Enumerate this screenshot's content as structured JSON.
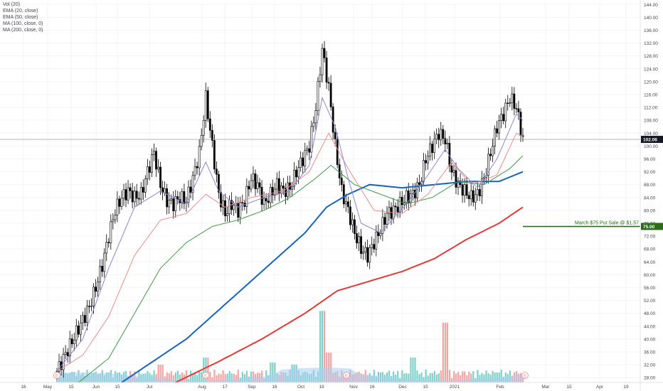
{
  "legend": [
    "Vol (20)",
    "EMA (20, close)",
    "EMA (50, close)",
    "MA (100, close, 0)",
    "MA (200, close, 0)"
  ],
  "colors": {
    "up": "#000000",
    "down": "#000000",
    "ema20": "#8c86d6",
    "ema50": "#f08a8a",
    "ma100": "#3d9a45",
    "ma200_blue": "#1565c0",
    "ma200_red": "#e53935",
    "vol_up": "#7fd0c8",
    "vol_down": "#f5a3a3",
    "vol_ma": "#a9cdf0",
    "price_line": "#888888",
    "annotation": "#2e6b1f"
  },
  "chart_data": {
    "type": "candlestick",
    "y_axis": {
      "ticks": [
        "28.00",
        "32.00",
        "36.00",
        "40.00",
        "44.00",
        "48.00",
        "52.00",
        "56.00",
        "60.00",
        "64.00",
        "68.00",
        "72.00",
        "76.00",
        "80.00",
        "84.00",
        "88.00",
        "92.00",
        "96.00",
        "100.00",
        "104.00",
        "108.00",
        "112.00",
        "116.00",
        "120.00",
        "124.00",
        "128.00",
        "132.00",
        "136.00",
        "140.00",
        "144.00"
      ],
      "range": [
        26.5,
        144.5
      ]
    },
    "x_axis": {
      "ticks": [
        "16",
        "May",
        "15",
        "Jun",
        "15",
        "Jul",
        "Aug",
        "17",
        "Sep",
        "16",
        "Oct",
        "19",
        "Nov",
        "16",
        "Dec",
        "15",
        "2021",
        "Feb",
        "Mar",
        "15",
        "Apr",
        "19"
      ]
    },
    "last_price": "102.06",
    "annotation": {
      "text": "March $75 Put Sale @ $1.57",
      "price_label": "75.00",
      "value": 75.0
    },
    "earnings_markers": [
      "E",
      "E",
      "E",
      "E",
      "E",
      "E"
    ],
    "price_path": [
      [
        0,
        30
      ],
      [
        3,
        34
      ],
      [
        6,
        38
      ],
      [
        9,
        42
      ],
      [
        12,
        46
      ],
      [
        15,
        50
      ],
      [
        18,
        56
      ],
      [
        21,
        63
      ],
      [
        24,
        72
      ],
      [
        27,
        80
      ],
      [
        30,
        84
      ],
      [
        33,
        86
      ],
      [
        36,
        84
      ],
      [
        39,
        85
      ],
      [
        42,
        92
      ],
      [
        45,
        98
      ],
      [
        48,
        88
      ],
      [
        51,
        83
      ],
      [
        54,
        82
      ],
      [
        57,
        84
      ],
      [
        60,
        83
      ],
      [
        63,
        90
      ],
      [
        66,
        98
      ],
      [
        69,
        115
      ],
      [
        72,
        100
      ],
      [
        75,
        85
      ],
      [
        78,
        79
      ],
      [
        81,
        82
      ],
      [
        84,
        80
      ],
      [
        87,
        83
      ],
      [
        90,
        90
      ],
      [
        93,
        88
      ],
      [
        96,
        82
      ],
      [
        99,
        85
      ],
      [
        102,
        88
      ],
      [
        105,
        86
      ],
      [
        108,
        87
      ],
      [
        111,
        92
      ],
      [
        114,
        96
      ],
      [
        117,
        100
      ],
      [
        120,
        112
      ],
      [
        123,
        130
      ],
      [
        126,
        118
      ],
      [
        129,
        100
      ],
      [
        132,
        86
      ],
      [
        135,
        80
      ],
      [
        138,
        73
      ],
      [
        141,
        68
      ],
      [
        144,
        66
      ],
      [
        147,
        70
      ],
      [
        150,
        74
      ],
      [
        153,
        79
      ],
      [
        156,
        80
      ],
      [
        159,
        82
      ],
      [
        162,
        84
      ],
      [
        165,
        85
      ],
      [
        168,
        88
      ],
      [
        171,
        96
      ],
      [
        174,
        100
      ],
      [
        177,
        104
      ],
      [
        180,
        102
      ],
      [
        183,
        92
      ],
      [
        186,
        88
      ],
      [
        189,
        86
      ],
      [
        192,
        84
      ],
      [
        195,
        85
      ],
      [
        198,
        90
      ],
      [
        201,
        98
      ],
      [
        204,
        106
      ],
      [
        207,
        110
      ],
      [
        210,
        115
      ],
      [
        213,
        112
      ],
      [
        216,
        102
      ]
    ],
    "ema20": [
      [
        0,
        30
      ],
      [
        12,
        40
      ],
      [
        24,
        62
      ],
      [
        36,
        81
      ],
      [
        48,
        86
      ],
      [
        60,
        82
      ],
      [
        69,
        95
      ],
      [
        75,
        86
      ],
      [
        84,
        81
      ],
      [
        96,
        84
      ],
      [
        108,
        86
      ],
      [
        117,
        94
      ],
      [
        123,
        115
      ],
      [
        129,
        106
      ],
      [
        135,
        90
      ],
      [
        141,
        76
      ],
      [
        150,
        73
      ],
      [
        162,
        82
      ],
      [
        171,
        90
      ],
      [
        180,
        99
      ],
      [
        186,
        93
      ],
      [
        195,
        87
      ],
      [
        204,
        96
      ],
      [
        213,
        110
      ],
      [
        216,
        108
      ]
    ],
    "ema50": [
      [
        0,
        30
      ],
      [
        12,
        35
      ],
      [
        24,
        47
      ],
      [
        36,
        66
      ],
      [
        48,
        77
      ],
      [
        60,
        79
      ],
      [
        69,
        85
      ],
      [
        78,
        81
      ],
      [
        90,
        84
      ],
      [
        105,
        86
      ],
      [
        117,
        92
      ],
      [
        126,
        104
      ],
      [
        135,
        93
      ],
      [
        147,
        80
      ],
      [
        160,
        79
      ],
      [
        172,
        85
      ],
      [
        183,
        95
      ],
      [
        192,
        88
      ],
      [
        204,
        91
      ],
      [
        213,
        104
      ],
      [
        216,
        103
      ]
    ],
    "ma100": [
      [
        10,
        26.5
      ],
      [
        24,
        34
      ],
      [
        36,
        48
      ],
      [
        48,
        62
      ],
      [
        60,
        70
      ],
      [
        72,
        75
      ],
      [
        84,
        77
      ],
      [
        96,
        80
      ],
      [
        108,
        84
      ],
      [
        120,
        90
      ],
      [
        127,
        94
      ],
      [
        138,
        88
      ],
      [
        150,
        85
      ],
      [
        162,
        82
      ],
      [
        174,
        84
      ],
      [
        186,
        89
      ],
      [
        198,
        88
      ],
      [
        210,
        93
      ],
      [
        216,
        97
      ]
    ],
    "ma200_blue": [
      [
        30,
        26.5
      ],
      [
        60,
        40
      ],
      [
        80,
        52
      ],
      [
        100,
        64
      ],
      [
        115,
        73
      ],
      [
        125,
        81
      ],
      [
        135,
        85
      ],
      [
        145,
        88
      ],
      [
        160,
        87
      ],
      [
        175,
        88
      ],
      [
        190,
        89
      ],
      [
        205,
        89
      ],
      [
        216,
        92
      ]
    ],
    "ma200_red": [
      [
        55,
        26.5
      ],
      [
        75,
        33
      ],
      [
        95,
        40
      ],
      [
        115,
        48
      ],
      [
        130,
        55
      ],
      [
        145,
        58
      ],
      [
        160,
        61
      ],
      [
        175,
        65
      ],
      [
        190,
        71
      ],
      [
        205,
        76
      ],
      [
        216,
        81
      ]
    ],
    "volume_spikes": [
      [
        0,
        0.05
      ],
      [
        24,
        0.1
      ],
      [
        48,
        0.18
      ],
      [
        69,
        0.25
      ],
      [
        100,
        0.2
      ],
      [
        110,
        0.18
      ],
      [
        123,
        0.72
      ],
      [
        126,
        0.3
      ],
      [
        165,
        0.25
      ],
      [
        180,
        0.6
      ],
      [
        204,
        0.1
      ]
    ]
  }
}
